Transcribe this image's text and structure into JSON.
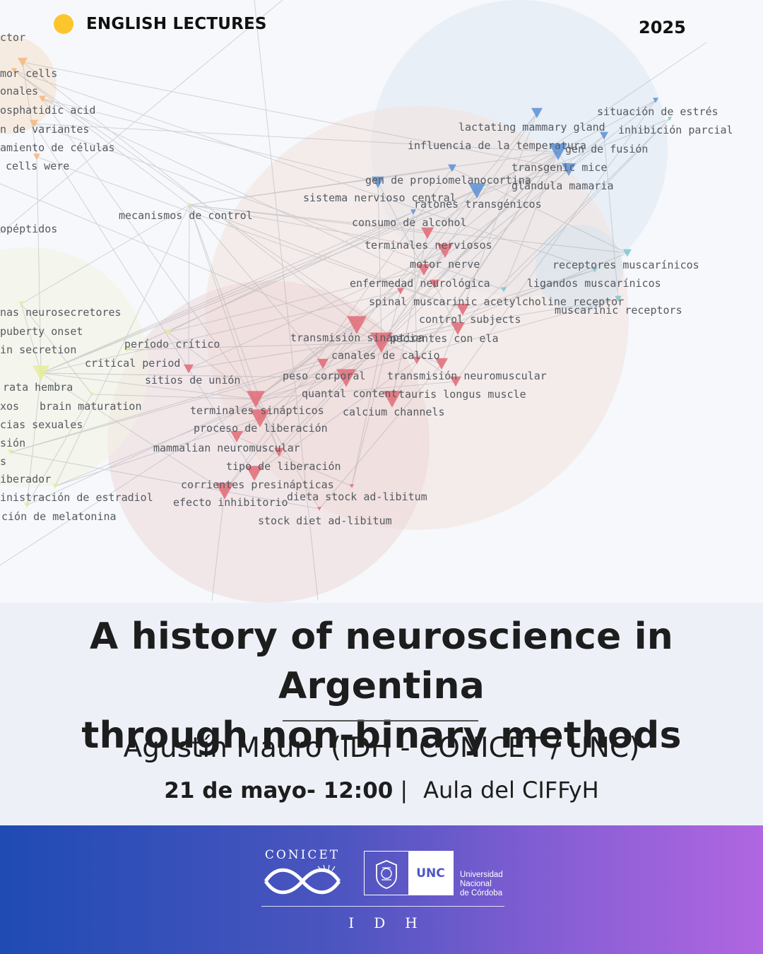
{
  "header": {
    "series_label": "ENGLISH LECTURES",
    "year": "2025"
  },
  "network": {
    "labels": [
      "ctor",
      "mor cells",
      "onales",
      "osphatidic acid",
      "n de variantes",
      "amiento de células",
      "cells were",
      "mecanismos de control",
      "opéptidos",
      "nas neurosecretores",
      "puberty onset",
      "in secretion",
      "período crítico",
      "critical period",
      "sitios de unión",
      "rata hembra",
      "xos",
      "brain maturation",
      "cias sexuales",
      "sión",
      "s",
      "iberador",
      "inistración de estradiol",
      "ción de melatonina",
      "situación de estrés",
      "lactating mammary gland",
      "inhibición parcial",
      "influencia de la temperatura",
      "gen de fusión",
      "transgenic mice",
      "gen de propiomelanocortina",
      "glándula mamaria",
      "sistema nervioso central",
      "ratones transgénicos",
      "consumo de alcohol",
      "terminales nerviosos",
      "motor nerve",
      "receptores muscarínicos",
      "enfermedad neurológica",
      "ligandos muscarínicos",
      "spinal muscarinic acetylcholine receptor",
      "muscarinic receptors",
      "control subjects",
      "transmisión sináptica",
      "pacientes con ela",
      "canales de calcio",
      "peso corporal",
      "transmisión neuromuscular",
      "quantal content",
      "tauris longus muscle",
      "calcium channels",
      "terminales sinápticos",
      "proceso de liberación",
      "mammalian neuromuscular",
      "tipo de liberación",
      "corrientes presinápticas",
      "dieta stock ad-libitum",
      "efecto inhibitorio",
      "stock diet ad-libitum"
    ],
    "cluster_colors": {
      "red": "#e26a76",
      "blue": "#5b8fd6",
      "cyan": "#7cc6cf",
      "yellow": "#e6ec9a",
      "orange": "#f6b77a"
    }
  },
  "talk": {
    "title_line1": "A history of neuroscience in Argentina",
    "title_line2": "through non-binary methods",
    "speaker": "Agustín Mauro (IDH - CONICET / UNC)",
    "date_time": "21 de mayo- 12:00",
    "separator": "|",
    "venue": "Aula del CIFFyH"
  },
  "footer": {
    "conicet": "CONICET",
    "unc": "UNC",
    "unc_name_1": "Universidad",
    "unc_name_2": "Nacional",
    "unc_name_3": "de Córdoba",
    "idh": "IDH"
  }
}
